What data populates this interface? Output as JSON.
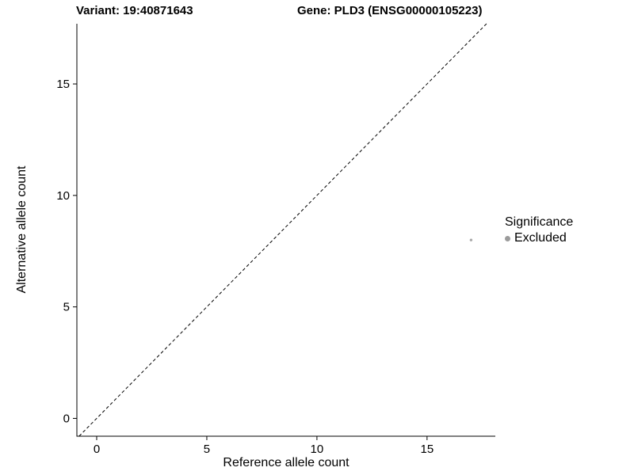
{
  "chart_data": {
    "type": "scatter",
    "title_left": "Variant: 19:40871643",
    "title_right": "Gene: PLD3 (ENSG00000105223)",
    "xlabel": "Reference allele count",
    "ylabel": "Alternative allele count",
    "xlim": [
      -0.9,
      18.1
    ],
    "ylim": [
      -0.8,
      17.7
    ],
    "xticks": [
      0,
      5,
      10,
      15
    ],
    "yticks": [
      0,
      5,
      10,
      15
    ],
    "grid": false,
    "diagonal": {
      "style": "dashed",
      "from": [
        -0.8,
        -0.8
      ],
      "to": [
        17.7,
        17.7
      ],
      "color": "#000000"
    },
    "series": [
      {
        "name": "Excluded",
        "color": "#a8a8a8",
        "point_radius": 1.7,
        "points": [
          {
            "x": 17,
            "y": 8
          }
        ]
      }
    ],
    "legend": {
      "title": "Significance",
      "position": "right",
      "entries": [
        {
          "label": "Excluded",
          "color": "#9b9b9b"
        }
      ]
    },
    "axis_color": "#000000",
    "background": "#ffffff"
  }
}
